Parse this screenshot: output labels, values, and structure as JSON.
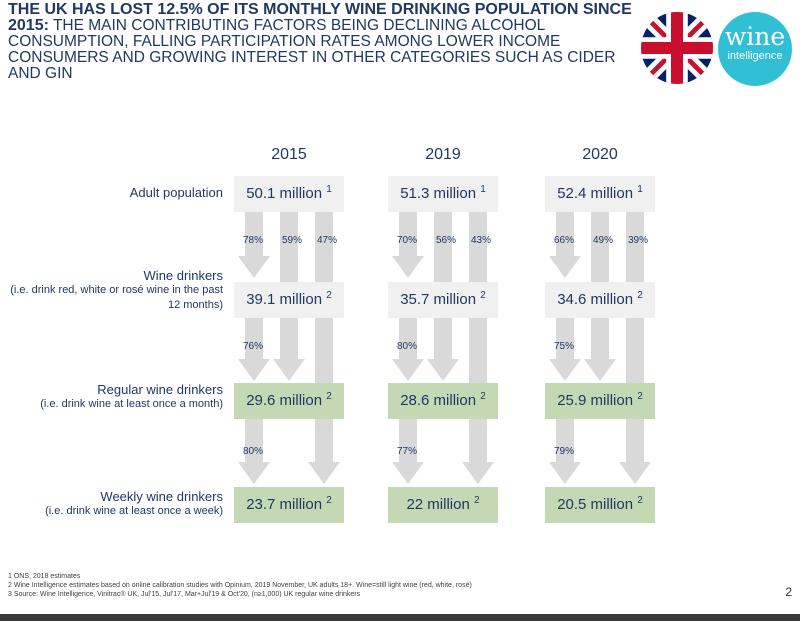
{
  "header": {
    "title_bold": "THE UK HAS LOST 12.5% OF ITS MONTHLY WINE DRINKING POPULATION SINCE 2015:",
    "title_rest": " THE MAIN CONTRIBUTING FACTORS BEING DECLINING ALCOHOL CONSUMPTION, FALLING PARTICIPATION RATES AMONG LOWER INCOME CONSUMERS AND GROWING INTEREST IN OTHER CATEGORIES SUCH AS CIDER AND GIN"
  },
  "logo": {
    "line1": "wine",
    "line2": "intelligence"
  },
  "years": [
    "2015",
    "2019",
    "2020"
  ],
  "rows": [
    {
      "label": "Adult population",
      "sub": ""
    },
    {
      "label": "Wine drinkers",
      "sub": "(i.e. drink red, white or rosé wine in the past 12 months)"
    },
    {
      "label": "Regular wine drinkers",
      "sub": "(i.e. drink wine at least once a month)"
    },
    {
      "label": "Weekly wine drinkers",
      "sub": "(i.e. drink wine at least once a week)"
    }
  ],
  "values": [
    [
      {
        "text": "50.1 million",
        "sup": "1"
      },
      {
        "text": "39.1 million",
        "sup": "2"
      },
      {
        "text": "29.6 million",
        "sup": "2"
      },
      {
        "text": "23.7 million",
        "sup": "2"
      }
    ],
    [
      {
        "text": "51.3 million",
        "sup": "1"
      },
      {
        "text": "35.7 million",
        "sup": "2"
      },
      {
        "text": "28.6 million",
        "sup": "2"
      },
      {
        "text": "22 million",
        "sup": "2"
      }
    ],
    [
      {
        "text": "52.4 million",
        "sup": "1"
      },
      {
        "text": "34.6 million",
        "sup": "2"
      },
      {
        "text": "25.9 million",
        "sup": "2"
      },
      {
        "text": "20.5 million",
        "sup": "2"
      }
    ]
  ],
  "conversion_rates": [
    {
      "from_adult": [
        "78%",
        "59%",
        "47%"
      ],
      "from_wine": "76%",
      "from_regular": "80%"
    },
    {
      "from_adult": [
        "70%",
        "56%",
        "43%"
      ],
      "from_wine": "80%",
      "from_regular": "77%"
    },
    {
      "from_adult": [
        "66%",
        "49%",
        "39%"
      ],
      "from_wine": "75%",
      "from_regular": "79%"
    }
  ],
  "footnotes": [
    "1 ONS, 2018 estimates",
    "2 Wine Intelligence estimates based on online calibration studies with Opinium, 2019 November, UK adults 18+. Wine=still light wine (red, white, rosé)",
    "3 Source: Wine Intelligence, Vinitrac® UK, Jul'15, Jul'17, Mar+Jul'19 & Oct'20, (n≥1,000) UK regular wine drinkers"
  ],
  "page_number": "2",
  "colors": {
    "navy": "#1f3864",
    "grey_box": "#f0f0f0",
    "green_box": "#c4d8b4",
    "arrow": "#d9d9d9",
    "logo": "#31bfd6"
  }
}
